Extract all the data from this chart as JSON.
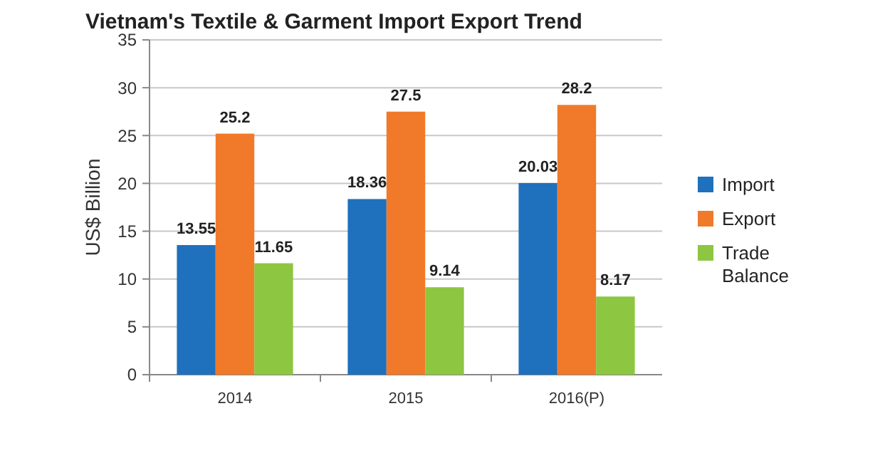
{
  "chart_data": {
    "type": "bar",
    "title": "Vietnam's Textile & Garment Import Export Trend",
    "ylabel": "US$ Billion",
    "categories": [
      "2014",
      "2015",
      "2016(P)"
    ],
    "series": [
      {
        "name": "Import",
        "color": "#1f70bd",
        "values": [
          13.55,
          18.36,
          20.03
        ]
      },
      {
        "name": "Export",
        "color": "#f07a2a",
        "values": [
          25.2,
          27.5,
          28.2
        ]
      },
      {
        "name": "Trade Balance",
        "color": "#8dc641",
        "values": [
          11.65,
          9.14,
          8.17
        ]
      }
    ],
    "ylim": [
      0,
      35
    ],
    "yticks": [
      0,
      5,
      10,
      15,
      20,
      25,
      30,
      35
    ],
    "grid": "y",
    "legend": "right",
    "data_labels": true
  }
}
